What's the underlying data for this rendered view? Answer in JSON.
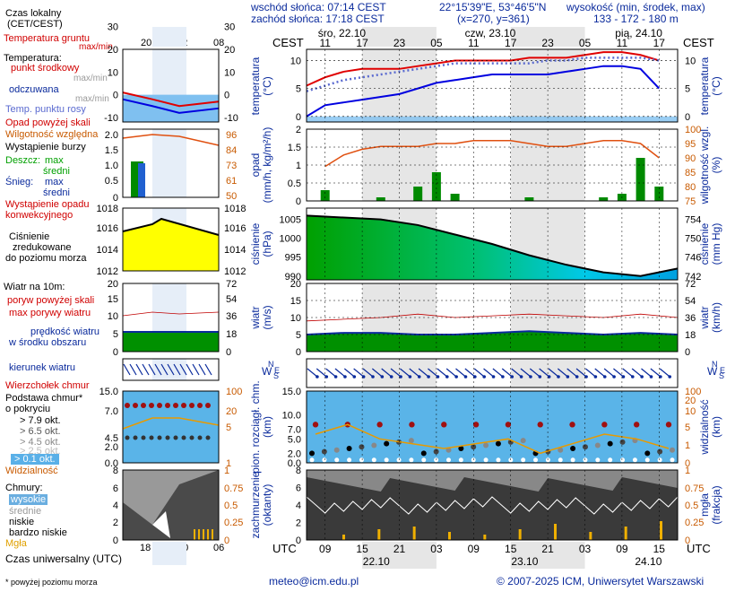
{
  "header": {
    "sunrise": "wschód słońca: 07:14 CEST",
    "sunset": "zachód słońca: 17:18 CEST",
    "coords": "22°15'39\"E, 53°46'5\"N",
    "grid": "(x=270, y=361)",
    "elev_title": "wysokość (min, środek, max)",
    "elev_values": "133 - 172 - 180 m"
  },
  "time_axis": {
    "tz_label": "CEST",
    "days_top": [
      "śro, 22.10",
      "czw, 23.10",
      "pią, 24.10"
    ],
    "hours_top": [
      "11",
      "17",
      "23",
      "05",
      "11",
      "17",
      "23",
      "05",
      "11",
      "17"
    ],
    "utc_label": "UTC",
    "hours_bottom": [
      "09",
      "15",
      "21",
      "03",
      "09",
      "15",
      "21",
      "03",
      "09",
      "15"
    ],
    "days_bottom": [
      "22.10",
      "23.10",
      "24.10"
    ]
  },
  "legend": {
    "local_time": "Czas lokalny",
    "local_time_sub": "(CET/CEST)",
    "local_hours": [
      "20",
      "02",
      "08"
    ],
    "soil_temp": "Temperatura gruntu",
    "max_min": "max/min",
    "temperature": "Temperatura:",
    "mid_point": "punkt środkowy",
    "max_min_gray": "max/min",
    "felt": "odczuwana",
    "max_min_gray2": "max/min",
    "dew_point": "Temp. punktu rosy",
    "precip_above": "Opad powyżej skali",
    "humidity": "Wilgotność względna",
    "storm": "Wystąpienie burzy",
    "rain": "Deszcz:",
    "snow": "Śnieg:",
    "max": "max",
    "mid": "średni",
    "max2": "max",
    "mid2": "średni",
    "conv": "Wystąpienie opadu",
    "conv2": "konwekcyjnego",
    "pressure1": "Ciśnienie",
    "pressure2": "zredukowane",
    "pressure3": "do poziomu morza",
    "wind_title": "Wiatr na 10m:",
    "gust_above": "poryw powyżej skali",
    "max_gust": "max porywy wiatru",
    "wind_speed1": "prędkość wiatru",
    "wind_speed2": "w środku obszaru",
    "wind_dir": "kierunek wiatru",
    "cloud_top": "Wierzchołek chmur",
    "cloud_base1": "Podstawa chmur*",
    "cloud_base2": "o pokryciu",
    "okt1": "> 7.9 okt.",
    "okt2": "> 6.5 okt.",
    "okt3": "> 4.5 okt.",
    "okt4": "> 2.5 okt.",
    "okt5": "> 0.1 okt.",
    "visibility": "Widzialność",
    "clouds": "Chmury:",
    "high": "wysokie",
    "middle": "średnie",
    "low": "niskie",
    "very_low": "bardzo niskie",
    "fog": "Mgła",
    "utc_time": "Czas uniwersalny (UTC)",
    "utc_hours": [
      "18",
      "00",
      "06"
    ],
    "footnote": "* powyżej poziomu morza"
  },
  "panel_labels": {
    "temp_l": "temperatura",
    "temp_l2": "(°C)",
    "temp_r": "temperatura",
    "temp_r2": "(°C)",
    "precip_l": "opad",
    "precip_l2": "(mm/h, kg/m²/h)",
    "precip_r": "wilgotność wzgl.",
    "precip_r2": "(%)",
    "press_l": "ciśnienie",
    "press_l2": "(hPa)",
    "press_r": "ciśnienie",
    "press_r2": "(mm Hg)",
    "wind_l": "wiatr",
    "wind_l2": "(m/s)",
    "wind_r": "wiatr",
    "wind_r2": "(km/h)",
    "cloud_l": "pion. rozciągł. chm.",
    "cloud_l2": "(km)",
    "cloud_r": "widzialność",
    "cloud_r2": "(km)",
    "cover_l": "zachmurzenie",
    "cover_l2": "(oktanty)",
    "cover_r": "mgła",
    "cover_r2": "(frakcja)"
  },
  "compass": {
    "n": "N",
    "w": "W",
    "e": "E",
    "s": "S"
  },
  "footer": {
    "email": "meteo@icm.edu.pl",
    "copyright": "© 2007-2025 ICM, Uniwersytet Warszawski"
  },
  "colors": {
    "temp": "#e00000",
    "felt": "#0000e0",
    "dew": "#5a6ad0",
    "humidity": "#e05010",
    "rain": "#008a00",
    "pressure": "#00c060",
    "wind_fill": "#009000",
    "gust": "#c00000",
    "visibility": "#e89a00",
    "cloud_top": "#a01010",
    "fog": "#f0b000",
    "sky": "#7fc0f0"
  },
  "chart_data": [
    {
      "type": "line",
      "title": "temperatura",
      "ylabel": "(°C)",
      "ylim": [
        -1,
        12
      ],
      "x_hours_utc": [
        6,
        9,
        12,
        15,
        18,
        21,
        24,
        27,
        30,
        33,
        36,
        39,
        42,
        45,
        48,
        51,
        54,
        57,
        60,
        63
      ],
      "series": [
        {
          "name": "punkt środkowy",
          "values": [
            5.5,
            7,
            8,
            8.5,
            8.5,
            8.5,
            9,
            9.5,
            10,
            10,
            10,
            10,
            10.5,
            10.5,
            10.5,
            11,
            11.5,
            11.5,
            11,
            10
          ]
        },
        {
          "name": "odczuwana",
          "values": [
            0,
            2,
            2.5,
            3,
            3.5,
            4,
            5,
            6,
            6.5,
            7,
            7.5,
            7.5,
            7.5,
            7.5,
            8,
            8.5,
            9,
            9,
            8.5,
            5
          ]
        },
        {
          "name": "Temp. punktu rosy",
          "values": [
            4.5,
            5.5,
            6.5,
            7,
            7.5,
            8,
            8.5,
            9,
            9.5,
            9.5,
            9.5,
            9.5,
            9.5,
            10,
            10,
            10.5,
            10.5,
            10.5,
            10.5,
            10
          ]
        }
      ]
    },
    {
      "type": "bar",
      "title": "opad",
      "ylabel": "(mm/h, kg/m²/h)",
      "ylim": [
        0,
        2
      ],
      "x_hours_utc": [
        9,
        12,
        15,
        18,
        21,
        24,
        27,
        30,
        33,
        36,
        39,
        42,
        45,
        48,
        51,
        54,
        57,
        60,
        63
      ],
      "series": [
        {
          "name": "Deszcz",
          "values": [
            0.3,
            0,
            0,
            0.1,
            0,
            0.4,
            0.8,
            0.2,
            0,
            0,
            0,
            0.1,
            0,
            0,
            0,
            0.1,
            0.2,
            1.2,
            0.4
          ]
        },
        {
          "name": "Wilgotność względna",
          "values": [
            87,
            91,
            93,
            94,
            94,
            94,
            95,
            95,
            96,
            96,
            96,
            95,
            94,
            94,
            95,
            96,
            96,
            95,
            90
          ]
        }
      ]
    },
    {
      "type": "area",
      "title": "ciśnienie",
      "ylabel": "(hPa)",
      "ylim": [
        989,
        1008
      ],
      "x_hours_utc": [
        6,
        12,
        18,
        24,
        30,
        36,
        42,
        48,
        54,
        60,
        66
      ],
      "series": [
        {
          "name": "Ciśnienie",
          "values": [
            1006,
            1005.5,
            1005,
            1003.5,
            1001,
            998.5,
            995.5,
            993,
            991,
            990,
            992
          ]
        }
      ]
    },
    {
      "type": "line",
      "title": "wiatr",
      "ylabel": "(m/s)",
      "ylim": [
        0,
        20
      ],
      "x_hours_utc": [
        6,
        12,
        18,
        24,
        30,
        36,
        42,
        48,
        54,
        60,
        66
      ],
      "series": [
        {
          "name": "prędkość wiatru",
          "values": [
            5,
            5.5,
            5.5,
            5,
            5,
            5.5,
            6,
            5.5,
            5,
            5.5,
            5
          ]
        },
        {
          "name": "max porywy wiatru",
          "values": [
            9,
            9.5,
            10,
            11,
            10,
            10.5,
            11,
            10.5,
            10,
            11,
            10
          ]
        }
      ]
    },
    {
      "type": "scatter",
      "title": "pion. rozciągł. chm.",
      "ylabel": "(km)",
      "ylim": [
        0,
        15
      ],
      "series": [
        {
          "name": "Wierzchołek chmur",
          "values": [
            8,
            8,
            8,
            8,
            8,
            8,
            8,
            8,
            8,
            8,
            8,
            8
          ]
        },
        {
          "name": "Widzialność",
          "values": [
            6,
            8,
            5,
            4,
            3,
            4,
            5,
            2,
            4,
            6,
            5,
            3
          ]
        }
      ]
    },
    {
      "type": "area",
      "title": "zachmurzenie",
      "ylabel": "(oktanty)",
      "ylim": [
        0,
        8
      ],
      "series": [
        {
          "name": "mgła",
          "values": [
            0.2,
            0.4,
            0.5,
            0.3,
            0.2,
            0.4,
            0.6,
            0.3,
            0.5,
            0.7
          ]
        }
      ]
    }
  ]
}
